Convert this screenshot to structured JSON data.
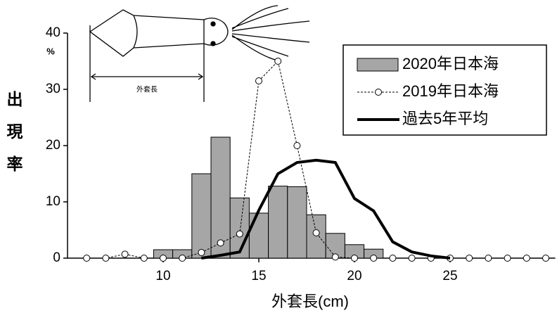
{
  "chart_data": {
    "type": "bar-line",
    "y_label": "出現率",
    "y_unit": "%",
    "x_label": "外套長(cm)",
    "illustration_label": "外套長",
    "x": [
      6,
      7,
      8,
      9,
      10,
      11,
      12,
      13,
      14,
      15,
      16,
      17,
      18,
      19,
      20,
      21,
      22,
      23,
      24,
      25,
      26,
      27,
      28,
      29,
      30
    ],
    "series": [
      {
        "name": "2020年日本海",
        "kind": "bar",
        "color": "#a6a6a6",
        "values": [
          null,
          null,
          null,
          null,
          1.5,
          1.5,
          15,
          21.5,
          10.7,
          8,
          12.8,
          12.7,
          7.7,
          4.4,
          2.4,
          1.6,
          null,
          null,
          null,
          null,
          null,
          null,
          null,
          null,
          null
        ]
      },
      {
        "name": "2019年日本海",
        "kind": "dashed-marker",
        "color": "#000000",
        "values": [
          0,
          0,
          0.7,
          0,
          0,
          0,
          1,
          2.7,
          4.3,
          31.5,
          35,
          20,
          4.5,
          0.2,
          0,
          0,
          0,
          0,
          0,
          0,
          0,
          0,
          0,
          0,
          0
        ]
      },
      {
        "name": "過去5年平均",
        "kind": "thick-line",
        "color": "#000000",
        "values": [
          null,
          null,
          null,
          null,
          null,
          null,
          0,
          0.5,
          1.1,
          8.5,
          15,
          17,
          17.4,
          17,
          10.6,
          8.4,
          2.9,
          1.1,
          0.4,
          0,
          null,
          null,
          null,
          null,
          null
        ]
      }
    ],
    "xlim": [
      5,
      30.5
    ],
    "xticks": [
      10,
      15,
      20,
      25
    ],
    "ylim": [
      0,
      40
    ],
    "yticks": [
      0,
      10,
      20,
      30,
      40
    ],
    "legend": "upper-right"
  }
}
